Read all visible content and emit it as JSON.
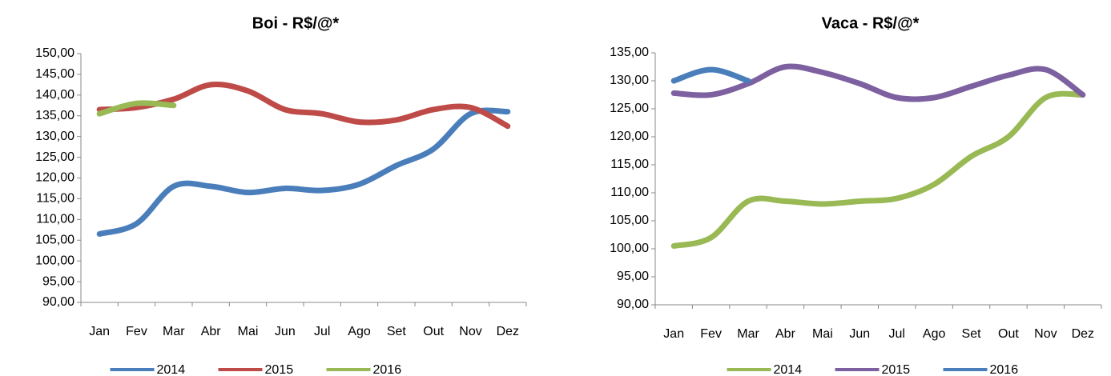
{
  "chart_data": [
    {
      "type": "line",
      "title": "Boi - R$/@*",
      "categories": [
        "Jan",
        "Fev",
        "Mar",
        "Abr",
        "Mai",
        "Jun",
        "Jul",
        "Ago",
        "Set",
        "Out",
        "Nov",
        "Dez"
      ],
      "series": [
        {
          "name": "2014",
          "color": "#4a7ebb",
          "values": [
            106.5,
            109,
            118,
            118,
            116.5,
            117.5,
            117,
            118.5,
            123,
            127,
            135.5,
            136
          ]
        },
        {
          "name": "2015",
          "color": "#be4b48",
          "values": [
            136.5,
            137,
            139,
            142.5,
            141,
            136.5,
            135.5,
            133.5,
            134,
            136.5,
            137,
            132.5
          ]
        },
        {
          "name": "2016",
          "color": "#98b954",
          "values": [
            135.5,
            138,
            137.5,
            null,
            null,
            null,
            null,
            null,
            null,
            null,
            null,
            null
          ]
        }
      ],
      "ylim": [
        90,
        150
      ],
      "yticks": [
        {
          "value": 90,
          "label": "90,00"
        },
        {
          "value": 95,
          "label": "95,00"
        },
        {
          "value": 100,
          "label": "100,00"
        },
        {
          "value": 105,
          "label": "105,00"
        },
        {
          "value": 110,
          "label": "110,00"
        },
        {
          "value": 115,
          "label": "115,00"
        },
        {
          "value": 120,
          "label": "120,00"
        },
        {
          "value": 125,
          "label": "125,00"
        },
        {
          "value": 130,
          "label": "130,00"
        },
        {
          "value": 135,
          "label": "135,00"
        },
        {
          "value": 140,
          "label": "140,00"
        },
        {
          "value": 145,
          "label": "145,00"
        },
        {
          "value": 150,
          "label": "150,00"
        }
      ],
      "legend": "bottom"
    },
    {
      "type": "line",
      "title": "Vaca - R$/@*",
      "categories": [
        "Jan",
        "Fev",
        "Mar",
        "Abr",
        "Mai",
        "Jun",
        "Jul",
        "Ago",
        "Set",
        "Out",
        "Nov",
        "Dez"
      ],
      "series": [
        {
          "name": "2014",
          "color": "#98b954",
          "values": [
            100.5,
            102,
            108.5,
            108.5,
            108,
            108.5,
            109,
            111.5,
            116.5,
            120,
            127,
            127.5
          ]
        },
        {
          "name": "2015",
          "color": "#7d60a0",
          "values": [
            127.8,
            127.5,
            129.5,
            132.5,
            131.5,
            129.5,
            127,
            127,
            129,
            131,
            132,
            127.5
          ]
        },
        {
          "name": "2016",
          "color": "#4a7ebb",
          "values": [
            130,
            132,
            130,
            null,
            null,
            null,
            null,
            null,
            null,
            null,
            null,
            null
          ]
        }
      ],
      "ylim": [
        90,
        135
      ],
      "yticks": [
        {
          "value": 90,
          "label": "90,00"
        },
        {
          "value": 95,
          "label": "95,00"
        },
        {
          "value": 100,
          "label": "100,00"
        },
        {
          "value": 105,
          "label": "105,00"
        },
        {
          "value": 110,
          "label": "110,00"
        },
        {
          "value": 115,
          "label": "115,00"
        },
        {
          "value": 120,
          "label": "120,00"
        },
        {
          "value": 125,
          "label": "125,00"
        },
        {
          "value": 130,
          "label": "130,00"
        },
        {
          "value": 135,
          "label": "135,00"
        }
      ],
      "legend": "bottom"
    }
  ]
}
